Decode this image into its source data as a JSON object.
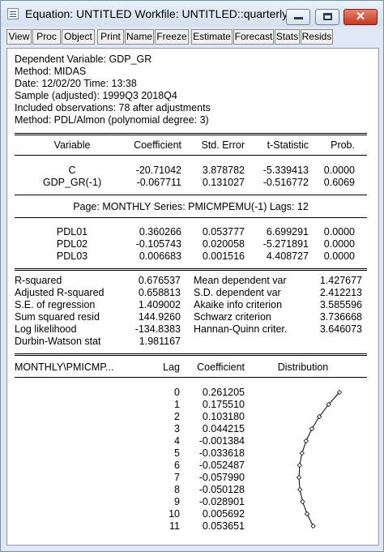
{
  "window": {
    "title": "Equation: UNTITLED   Workfile: UNTITLED::quarterly\\",
    "controls": {
      "minimize": "minimize",
      "maximize": "maximize",
      "close": "✕"
    }
  },
  "toolbar": [
    "View",
    "Proc",
    "Object",
    "Print",
    "Name",
    "Freeze",
    "Estimate",
    "Forecast",
    "Stats",
    "Resids"
  ],
  "header": {
    "dependent": "Dependent Variable: GDP_GR",
    "method": "Method: MIDAS",
    "date": "Date: 12/02/20   Time: 13:38",
    "sample": "Sample (adjusted): 1999Q3 2018Q4",
    "observations": "Included observations: 78 after adjustments",
    "method2": "Method: PDL/Almon (polynomial degree: 3)"
  },
  "coef_table": {
    "columns": [
      "Variable",
      "Coefficient",
      "Std. Error",
      "t-Statistic",
      "Prob."
    ],
    "rows": [
      [
        "C",
        "-20.71042",
        "3.878782",
        "-5.339413",
        "0.0000"
      ],
      [
        "GDP_GR(-1)",
        "-0.067711",
        "0.131027",
        "-0.516772",
        "0.6069"
      ]
    ],
    "page_line": "Page: MONTHLY  Series: PMICMPEMU(-1)   Lags: 12",
    "pdl_rows": [
      [
        "PDL01",
        "0.360266",
        "0.053777",
        "6.699291",
        "0.0000"
      ],
      [
        "PDL02",
        "-0.105743",
        "0.020058",
        "-5.271891",
        "0.0000"
      ],
      [
        "PDL03",
        "0.006683",
        "0.001516",
        "4.408727",
        "0.0000"
      ]
    ]
  },
  "stats": {
    "left": [
      [
        "R-squared",
        "0.676537"
      ],
      [
        "Adjusted R-squared",
        "0.658813"
      ],
      [
        "S.E. of regression",
        "1.409002"
      ],
      [
        "Sum squared resid",
        "144.9260"
      ],
      [
        "Log likelihood",
        "-134.8383"
      ],
      [
        "Durbin-Watson stat",
        "1.981167"
      ]
    ],
    "right": [
      [
        "Mean dependent var",
        "1.427677"
      ],
      [
        "S.D. dependent var",
        "2.412213"
      ],
      [
        "Akaike info criterion",
        "3.585596"
      ],
      [
        "Schwarz criterion",
        "3.736668"
      ],
      [
        "Hannan-Quinn criter.",
        "3.646073"
      ]
    ]
  },
  "lag_table": {
    "columns": [
      "MONTHLY\\PMICMP...",
      "Lag",
      "Coefficient",
      "Distribution"
    ],
    "rows": [
      [
        "0",
        "0.261205"
      ],
      [
        "1",
        "0.175510"
      ],
      [
        "2",
        "0.103180"
      ],
      [
        "3",
        "0.044215"
      ],
      [
        "4",
        "-0.001384"
      ],
      [
        "5",
        "-0.033618"
      ],
      [
        "6",
        "-0.052487"
      ],
      [
        "7",
        "-0.057990"
      ],
      [
        "8",
        "-0.050128"
      ],
      [
        "9",
        "-0.028901"
      ],
      [
        "10",
        "0.005692"
      ],
      [
        "11",
        "0.053651"
      ]
    ]
  },
  "chart_data": {
    "type": "line",
    "title": "",
    "x": [
      0,
      1,
      2,
      3,
      4,
      5,
      6,
      7,
      8,
      9,
      10,
      11
    ],
    "values": [
      0.261205,
      0.17551,
      0.10318,
      0.044215,
      -0.001384,
      -0.033618,
      -0.052487,
      -0.05799,
      -0.050128,
      -0.028901,
      0.005692,
      0.053651
    ]
  }
}
